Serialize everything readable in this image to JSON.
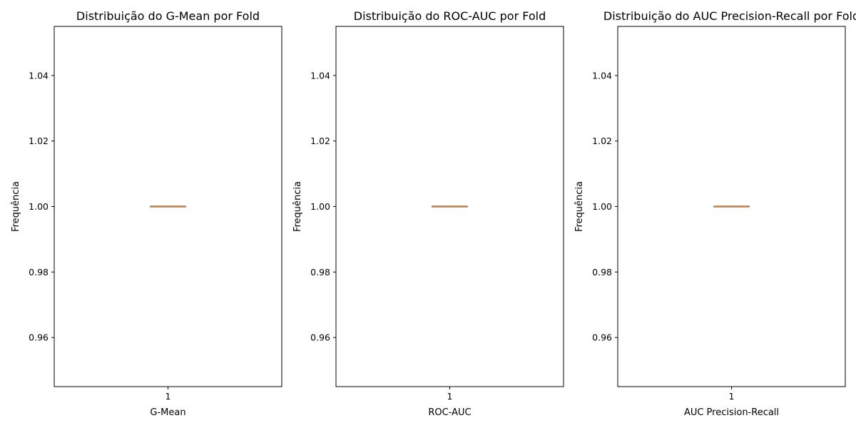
{
  "chart_data": [
    {
      "type": "box",
      "title": "Distribuição do G-Mean por Fold",
      "xlabel": "G-Mean",
      "ylabel": "Frequência",
      "categories": [
        "1"
      ],
      "ylim": [
        0.945,
        1.055
      ],
      "yticks": [
        "0.96",
        "0.98",
        "1.00",
        "1.02",
        "1.04"
      ],
      "boxes": [
        {
          "min": 1.0,
          "q1": 1.0,
          "median": 1.0,
          "q3": 1.0,
          "max": 1.0
        }
      ],
      "grid": false
    },
    {
      "type": "box",
      "title": "Distribuição do ROC-AUC por Fold",
      "xlabel": "ROC-AUC",
      "ylabel": "Frequência",
      "categories": [
        "1"
      ],
      "ylim": [
        0.945,
        1.055
      ],
      "yticks": [
        "0.96",
        "0.98",
        "1.00",
        "1.02",
        "1.04"
      ],
      "boxes": [
        {
          "min": 1.0,
          "q1": 1.0,
          "median": 1.0,
          "q3": 1.0,
          "max": 1.0
        }
      ],
      "grid": false
    },
    {
      "type": "box",
      "title": "Distribuição do AUC Precision-Recall por Fold",
      "xlabel": "AUC Precision-Recall",
      "ylabel": "Frequência",
      "categories": [
        "1"
      ],
      "ylim": [
        0.945,
        1.055
      ],
      "yticks": [
        "0.96",
        "0.98",
        "1.00",
        "1.02",
        "1.04"
      ],
      "boxes": [
        {
          "min": 1.0,
          "q1": 1.0,
          "median": 1.0,
          "q3": 1.0,
          "max": 1.0
        }
      ],
      "grid": false
    }
  ],
  "colors": {
    "box": "#000000",
    "median": "#e07a2e",
    "axes": "#000000"
  }
}
